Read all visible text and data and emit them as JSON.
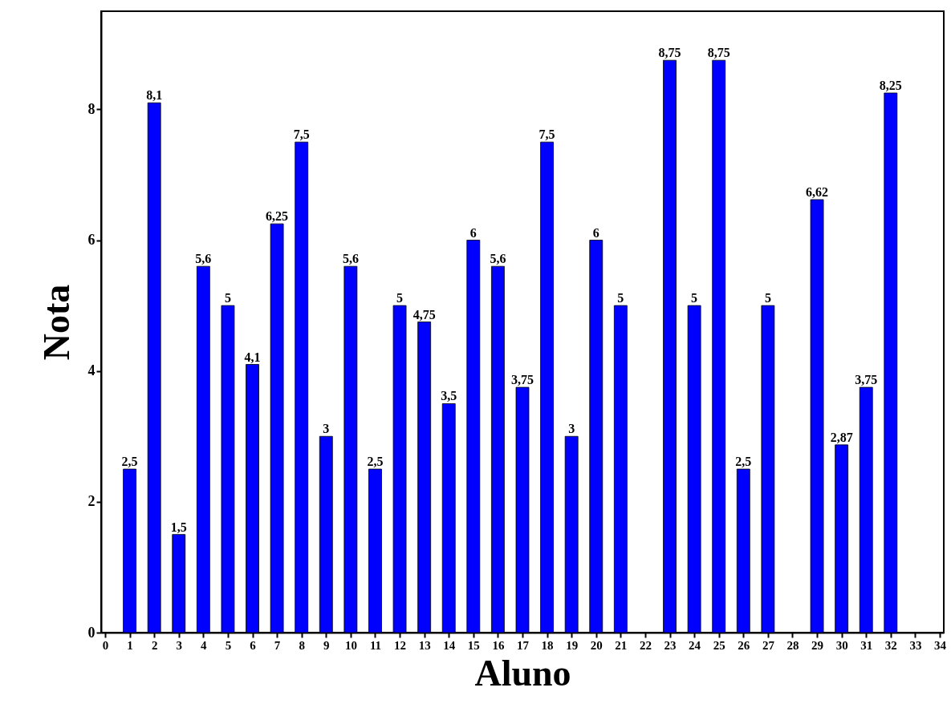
{
  "chart_data": {
    "type": "bar",
    "xlabel": "Aluno",
    "ylabel": "Nota",
    "x": [
      1,
      2,
      3,
      4,
      5,
      6,
      7,
      8,
      9,
      10,
      11,
      12,
      13,
      14,
      15,
      16,
      17,
      18,
      19,
      20,
      21,
      22,
      23,
      24,
      25,
      26,
      27,
      28,
      29,
      30,
      31,
      32
    ],
    "values": [
      2.5,
      8.1,
      1.5,
      5.6,
      5,
      4.1,
      6.25,
      7.5,
      3,
      5.6,
      2.5,
      5,
      4.75,
      3.5,
      6,
      5.6,
      3.75,
      7.5,
      3,
      6,
      5,
      null,
      8.75,
      5,
      8.75,
      2.5,
      5,
      null,
      6.62,
      2.87,
      3.75,
      8.25
    ],
    "value_labels": [
      "2,5",
      "8,1",
      "1,5",
      "5,6",
      "5",
      "4,1",
      "6,25",
      "7,5",
      "3",
      "5,6",
      "2,5",
      "5",
      "4,75",
      "3,5",
      "6",
      "5,6",
      "3,75",
      "7,5",
      "3",
      "6",
      "5",
      null,
      "8,75",
      "5",
      "8,75",
      "2,5",
      "5",
      null,
      "6,62",
      "2,87",
      "3,75",
      "8,25"
    ],
    "color": "#0000ff",
    "xlim": [
      0,
      34
    ],
    "xticks": [
      0,
      1,
      2,
      3,
      4,
      5,
      6,
      7,
      8,
      9,
      10,
      11,
      12,
      13,
      14,
      15,
      16,
      17,
      18,
      19,
      20,
      21,
      22,
      23,
      24,
      25,
      26,
      27,
      28,
      29,
      30,
      31,
      32,
      33,
      34
    ],
    "ylim": [
      0,
      9.5
    ],
    "yticks": [
      0,
      2,
      4,
      6,
      8
    ],
    "grid": false
  }
}
